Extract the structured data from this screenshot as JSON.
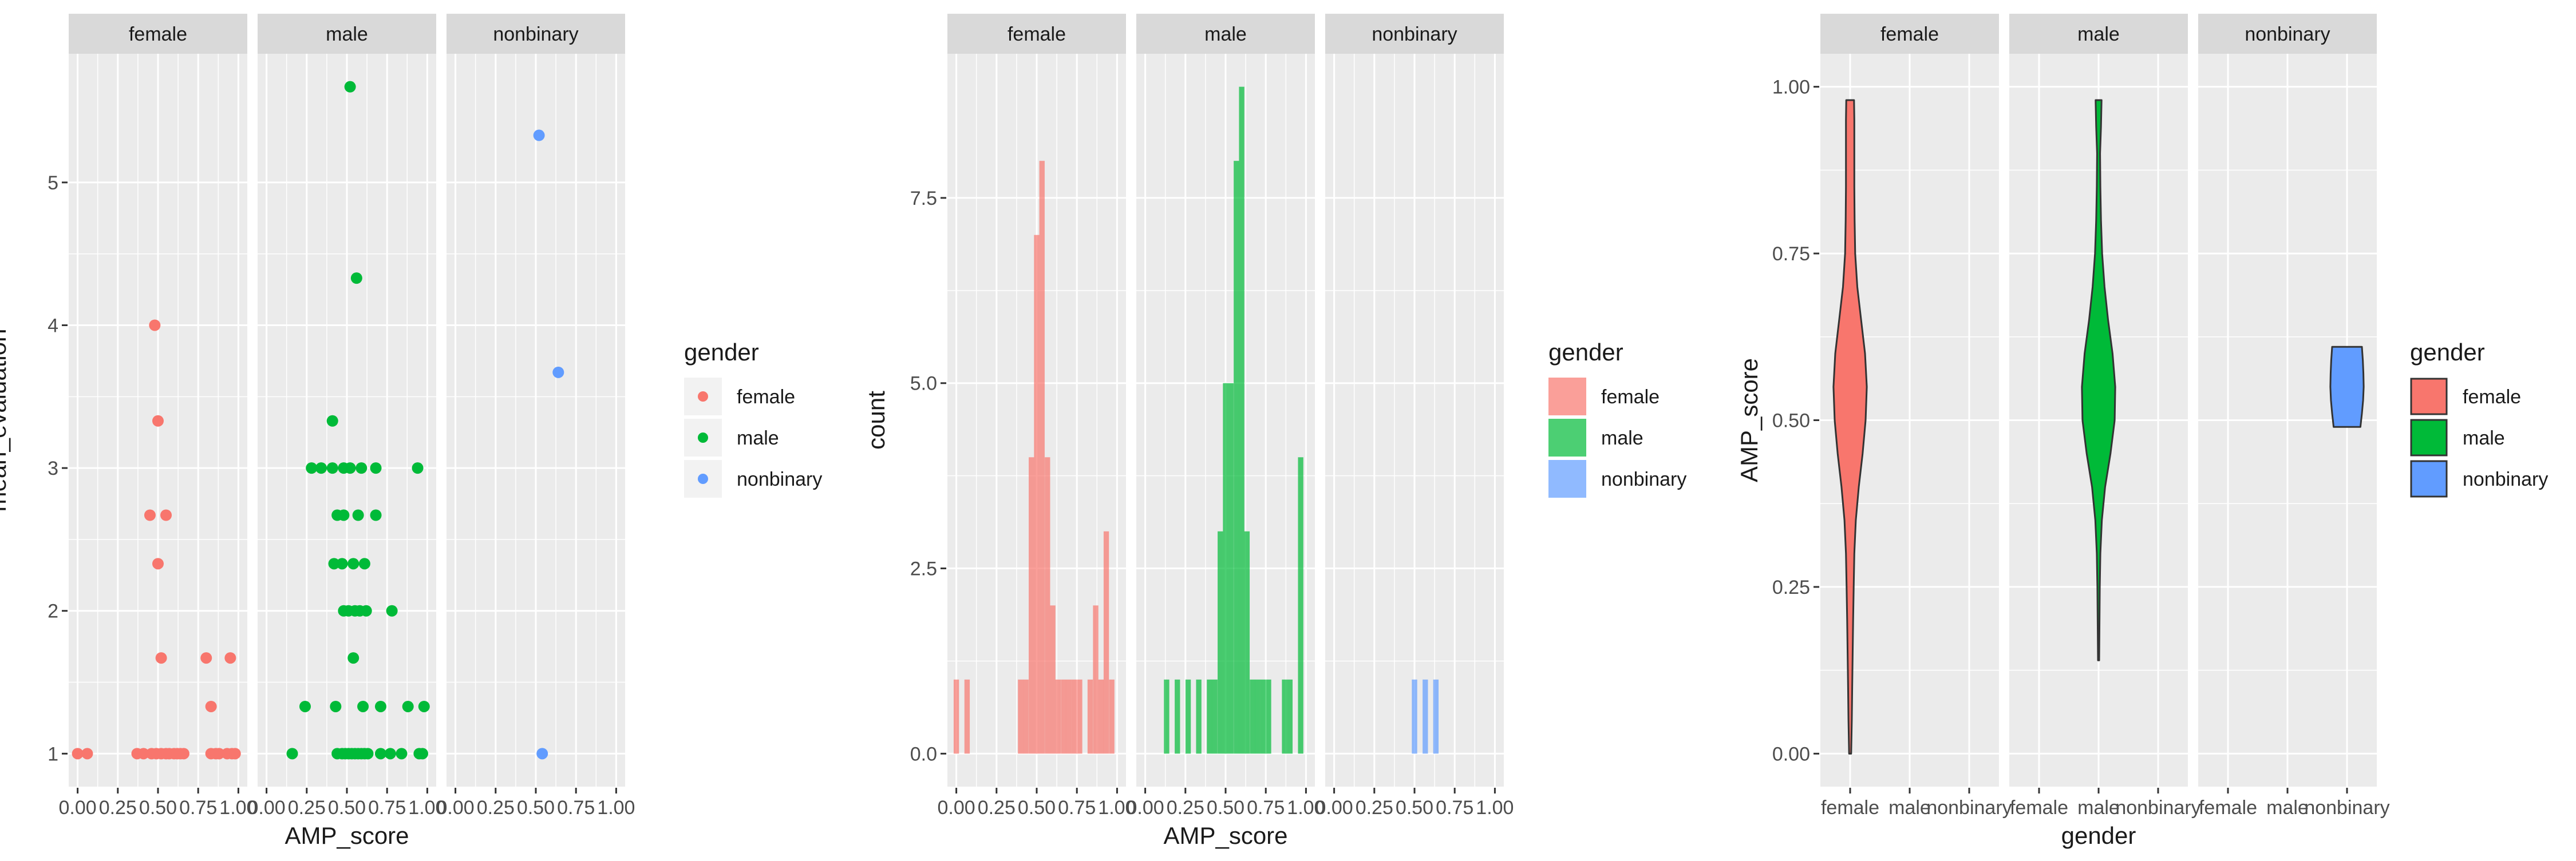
{
  "colors": {
    "female": "#F8766D",
    "male": "#00BA38",
    "nonbinary": "#619CFF",
    "panel_bg": "#EBEBEB",
    "strip_bg": "#D9D9D9",
    "grid": "#FFFFFF",
    "text": "#4D4D4D",
    "title_text": "#1A1A1A"
  },
  "legend": {
    "title": "gender",
    "labels": [
      "female",
      "male",
      "nonbinary"
    ]
  },
  "chart_data": [
    {
      "type": "scatter",
      "title": "",
      "xlabel": "AMP_score",
      "ylabel": "mean_evaluation",
      "facets": [
        "female",
        "male",
        "nonbinary"
      ],
      "xlim": [
        0,
        1
      ],
      "ylim": [
        1,
        5.67
      ],
      "x_ticks": [
        "0.00",
        "0.25",
        "0.50",
        "0.75",
        "1.00"
      ],
      "x_tick_values": [
        0,
        0.25,
        0.5,
        0.75,
        1
      ],
      "y_ticks": [
        "1",
        "2",
        "3",
        "4",
        "5"
      ],
      "y_tick_values": [
        1,
        2,
        3,
        4,
        5
      ],
      "series": [
        {
          "name": "female",
          "points": [
            [
              0.0,
              1
            ],
            [
              0.06,
              1
            ],
            [
              0.37,
              1
            ],
            [
              0.41,
              1
            ],
            [
              0.46,
              1
            ],
            [
              0.49,
              1
            ],
            [
              0.52,
              1
            ],
            [
              0.55,
              1
            ],
            [
              0.57,
              1
            ],
            [
              0.6,
              1
            ],
            [
              0.62,
              1
            ],
            [
              0.64,
              1
            ],
            [
              0.66,
              1
            ],
            [
              0.83,
              1
            ],
            [
              0.86,
              1
            ],
            [
              0.88,
              1
            ],
            [
              0.93,
              1
            ],
            [
              0.96,
              1
            ],
            [
              0.98,
              1
            ],
            [
              0.45,
              2.67
            ],
            [
              0.48,
              4
            ],
            [
              0.5,
              3.33
            ],
            [
              0.5,
              2.33
            ],
            [
              0.52,
              1.67
            ],
            [
              0.55,
              2.67
            ],
            [
              0.8,
              1.67
            ],
            [
              0.83,
              1.33
            ],
            [
              0.95,
              1.67
            ]
          ]
        },
        {
          "name": "male",
          "points": [
            [
              0.16,
              1
            ],
            [
              0.44,
              1
            ],
            [
              0.47,
              1
            ],
            [
              0.49,
              1
            ],
            [
              0.51,
              1
            ],
            [
              0.53,
              1
            ],
            [
              0.55,
              1
            ],
            [
              0.57,
              1
            ],
            [
              0.59,
              1
            ],
            [
              0.61,
              1
            ],
            [
              0.63,
              1
            ],
            [
              0.71,
              1
            ],
            [
              0.77,
              1
            ],
            [
              0.84,
              1
            ],
            [
              0.95,
              1
            ],
            [
              0.97,
              1
            ],
            [
              0.24,
              1.33
            ],
            [
              0.43,
              1.33
            ],
            [
              0.6,
              1.33
            ],
            [
              0.71,
              1.33
            ],
            [
              0.88,
              1.33
            ],
            [
              0.98,
              1.33
            ],
            [
              0.54,
              1.67
            ],
            [
              0.48,
              2
            ],
            [
              0.51,
              2
            ],
            [
              0.55,
              2
            ],
            [
              0.58,
              2
            ],
            [
              0.62,
              2
            ],
            [
              0.78,
              2
            ],
            [
              0.42,
              2.33
            ],
            [
              0.47,
              2.33
            ],
            [
              0.54,
              2.33
            ],
            [
              0.61,
              2.33
            ],
            [
              0.44,
              2.67
            ],
            [
              0.48,
              2.67
            ],
            [
              0.57,
              2.67
            ],
            [
              0.68,
              2.67
            ],
            [
              0.28,
              3
            ],
            [
              0.34,
              3
            ],
            [
              0.41,
              3
            ],
            [
              0.48,
              3
            ],
            [
              0.52,
              3
            ],
            [
              0.59,
              3
            ],
            [
              0.68,
              3
            ],
            [
              0.94,
              3
            ],
            [
              0.41,
              3.33
            ],
            [
              0.56,
              4.33
            ],
            [
              0.52,
              5.67
            ]
          ]
        },
        {
          "name": "nonbinary",
          "points": [
            [
              0.54,
              1
            ],
            [
              0.64,
              3.67
            ],
            [
              0.52,
              5.33
            ]
          ]
        }
      ]
    },
    {
      "type": "bar",
      "title": "",
      "xlabel": "AMP_score",
      "ylabel": "count",
      "facets": [
        "female",
        "male",
        "nonbinary"
      ],
      "xlim": [
        0,
        1
      ],
      "ylim": [
        0,
        9
      ],
      "x_ticks": [
        "0.00",
        "0.25",
        "0.50",
        "0.75",
        "1.00"
      ],
      "x_tick_values": [
        0,
        0.25,
        0.5,
        0.75,
        1
      ],
      "y_ticks": [
        "0.0",
        "2.5",
        "5.0",
        "7.5"
      ],
      "y_tick_values": [
        0,
        2.5,
        5,
        7.5
      ],
      "bin_width": 0.0333,
      "series": [
        {
          "name": "female",
          "bins": [
            [
              0.0,
              1
            ],
            [
              0.067,
              1
            ],
            [
              0.4,
              1
            ],
            [
              0.433,
              1
            ],
            [
              0.467,
              4
            ],
            [
              0.5,
              7
            ],
            [
              0.533,
              8
            ],
            [
              0.567,
              4
            ],
            [
              0.6,
              2
            ],
            [
              0.633,
              1
            ],
            [
              0.667,
              1
            ],
            [
              0.7,
              1
            ],
            [
              0.733,
              1
            ],
            [
              0.767,
              1
            ],
            [
              0.833,
              1
            ],
            [
              0.867,
              2
            ],
            [
              0.9,
              1
            ],
            [
              0.933,
              3
            ],
            [
              0.967,
              1
            ]
          ]
        },
        {
          "name": "male",
          "bins": [
            [
              0.133,
              1
            ],
            [
              0.2,
              1
            ],
            [
              0.267,
              1
            ],
            [
              0.333,
              1
            ],
            [
              0.4,
              1
            ],
            [
              0.433,
              1
            ],
            [
              0.467,
              3
            ],
            [
              0.5,
              5
            ],
            [
              0.533,
              5
            ],
            [
              0.567,
              8
            ],
            [
              0.6,
              9
            ],
            [
              0.633,
              3
            ],
            [
              0.667,
              1
            ],
            [
              0.7,
              1
            ],
            [
              0.733,
              1
            ],
            [
              0.767,
              1
            ],
            [
              0.867,
              1
            ],
            [
              0.9,
              1
            ],
            [
              0.967,
              4
            ]
          ]
        },
        {
          "name": "nonbinary",
          "bins": [
            [
              0.5,
              1
            ],
            [
              0.567,
              1
            ],
            [
              0.633,
              1
            ]
          ]
        }
      ]
    },
    {
      "type": "violin",
      "title": "",
      "xlabel": "gender",
      "ylabel": "AMP_score",
      "facets": [
        "female",
        "male",
        "nonbinary"
      ],
      "categories": [
        "female",
        "male",
        "nonbinary"
      ],
      "ylim": [
        0,
        1
      ],
      "y_ticks": [
        "0.00",
        "0.25",
        "0.50",
        "0.75",
        "1.00"
      ],
      "y_tick_values": [
        0,
        0.25,
        0.5,
        0.75,
        1
      ],
      "series": [
        {
          "name": "female",
          "range": [
            0.0,
            0.98
          ],
          "profile": [
            [
              0.0,
              0.035
            ],
            [
              0.05,
              0.055
            ],
            [
              0.1,
              0.07
            ],
            [
              0.15,
              0.085
            ],
            [
              0.2,
              0.1
            ],
            [
              0.25,
              0.12
            ],
            [
              0.3,
              0.14
            ],
            [
              0.35,
              0.19
            ],
            [
              0.4,
              0.29
            ],
            [
              0.45,
              0.42
            ],
            [
              0.5,
              0.52
            ],
            [
              0.55,
              0.56
            ],
            [
              0.6,
              0.5
            ],
            [
              0.65,
              0.37
            ],
            [
              0.7,
              0.24
            ],
            [
              0.75,
              0.17
            ],
            [
              0.8,
              0.15
            ],
            [
              0.85,
              0.14
            ],
            [
              0.9,
              0.14
            ],
            [
              0.95,
              0.14
            ],
            [
              0.98,
              0.13
            ]
          ]
        },
        {
          "name": "male",
          "range": [
            0.14,
            0.98
          ],
          "profile": [
            [
              0.14,
              0.02
            ],
            [
              0.2,
              0.03
            ],
            [
              0.25,
              0.04
            ],
            [
              0.3,
              0.06
            ],
            [
              0.35,
              0.11
            ],
            [
              0.4,
              0.22
            ],
            [
              0.45,
              0.4
            ],
            [
              0.5,
              0.54
            ],
            [
              0.55,
              0.56
            ],
            [
              0.6,
              0.47
            ],
            [
              0.65,
              0.32
            ],
            [
              0.7,
              0.2
            ],
            [
              0.75,
              0.12
            ],
            [
              0.8,
              0.08
            ],
            [
              0.85,
              0.06
            ],
            [
              0.9,
              0.05
            ],
            [
              0.94,
              0.08
            ],
            [
              0.98,
              0.1
            ]
          ]
        },
        {
          "name": "nonbinary",
          "range": [
            0.49,
            0.61
          ],
          "profile": [
            [
              0.49,
              0.45
            ],
            [
              0.51,
              0.5
            ],
            [
              0.53,
              0.54
            ],
            [
              0.55,
              0.56
            ],
            [
              0.57,
              0.55
            ],
            [
              0.59,
              0.53
            ],
            [
              0.61,
              0.5
            ]
          ]
        }
      ]
    }
  ]
}
